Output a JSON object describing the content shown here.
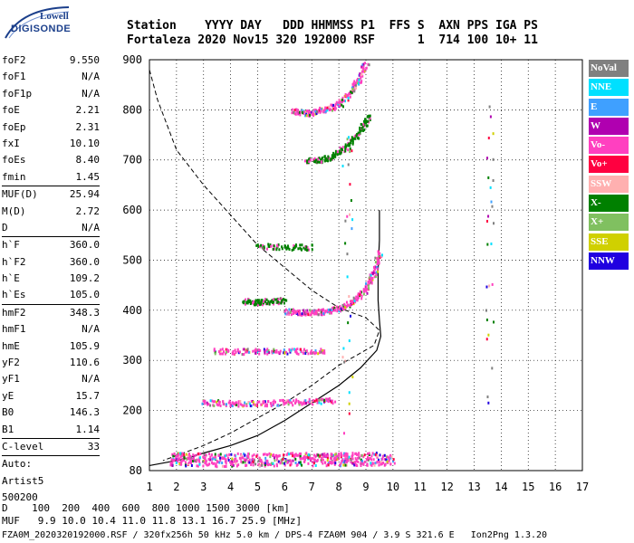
{
  "logo": {
    "line1": "Lowell",
    "line2": "DIGISONDE"
  },
  "header": {
    "labels": "Station    YYYY DAY   DDD HHMMSS P1  FFS S  AXN PPS IGA PS",
    "values": "Fortaleza 2020 Nov15 320 192000 RSF      1  714 100 10+ 11"
  },
  "params": {
    "group1": [
      {
        "k": "foF2",
        "v": "9.550"
      },
      {
        "k": "foF1",
        "v": "N/A"
      },
      {
        "k": "foF1p",
        "v": "N/A"
      },
      {
        "k": "foE",
        "v": "2.21"
      },
      {
        "k": "foEp",
        "v": "2.31"
      },
      {
        "k": "fxI",
        "v": "10.10"
      },
      {
        "k": "foEs",
        "v": "8.40"
      },
      {
        "k": "fmin",
        "v": "1.45"
      }
    ],
    "group2": [
      {
        "k": "MUF(D)",
        "v": "25.94"
      },
      {
        "k": "M(D)",
        "v": "2.72"
      },
      {
        "k": "D",
        "v": "N/A"
      }
    ],
    "group3": [
      {
        "k": "h`F",
        "v": "360.0"
      },
      {
        "k": "h`F2",
        "v": "360.0"
      },
      {
        "k": "h`E",
        "v": "109.2"
      },
      {
        "k": "h`Es",
        "v": "105.0"
      }
    ],
    "group4": [
      {
        "k": "hmF2",
        "v": "348.3"
      },
      {
        "k": "hmF1",
        "v": "N/A"
      },
      {
        "k": "hmE",
        "v": "105.9"
      },
      {
        "k": "yF2",
        "v": "110.6"
      },
      {
        "k": "yF1",
        "v": "N/A"
      },
      {
        "k": "yE",
        "v": "15.7"
      },
      {
        "k": "B0",
        "v": "146.3"
      },
      {
        "k": "B1",
        "v": "1.14"
      }
    ],
    "group5": [
      {
        "k": "C-level",
        "v": "33"
      }
    ],
    "auto": {
      "line1": "Auto:",
      "line2": "Artist5",
      "line3": "500200"
    }
  },
  "legend": [
    {
      "label": "NoVal",
      "color": "#808080"
    },
    {
      "label": "NNE",
      "color": "#00e0ff"
    },
    {
      "label": "E",
      "color": "#3fa0ff"
    },
    {
      "label": "W",
      "color": "#b000b0"
    },
    {
      "label": "Vo-",
      "color": "#ff40c0"
    },
    {
      "label": "Vo+",
      "color": "#ff0040"
    },
    {
      "label": "SSW",
      "color": "#ffb0b0"
    },
    {
      "label": "X-",
      "color": "#008000"
    },
    {
      "label": "X+",
      "color": "#80c060"
    },
    {
      "label": "SSE",
      "color": "#d0d000"
    },
    {
      "label": "NNW",
      "color": "#2000e0"
    }
  ],
  "bottom": {
    "line1": "D    100  200  400  600  800 1000 1500 3000 [km]",
    "line2": "MUF   9.9 10.0 10.4 11.0 11.8 13.1 16.7 25.9 [MHz]"
  },
  "footer": "FZA0M_2020320192000.RSF / 320fx256h 50 kHz 5.0 km / DPS-4 FZA0M 904 / 3.9 S 321.6 E   Ion2Png 1.3.20",
  "chart_data": {
    "type": "scatter",
    "title": "",
    "xlabel": "",
    "ylabel": "",
    "xlim": [
      1,
      17
    ],
    "ylim": [
      80,
      900
    ],
    "xticks": [
      "1",
      "2",
      "3",
      "4",
      "5",
      "6",
      "7",
      "8",
      "9",
      "10",
      "11",
      "12",
      "13",
      "14",
      "15",
      "16",
      "17"
    ],
    "yticks": [
      "80",
      "200",
      "300",
      "400",
      "500",
      "600",
      "700",
      "800",
      "900"
    ],
    "grid": true,
    "legend_position": "right",
    "series": [
      {
        "name": "trace_E_layer",
        "points": [
          [
            1.8,
            105
          ],
          [
            2.5,
            104
          ],
          [
            3.5,
            103
          ],
          [
            4.5,
            104
          ],
          [
            5.5,
            104
          ],
          [
            6.5,
            105
          ],
          [
            7.5,
            104
          ],
          [
            8.2,
            105
          ],
          [
            9.0,
            105
          ],
          [
            10.0,
            106
          ]
        ]
      },
      {
        "name": "trace_F2_o",
        "points": [
          [
            6.0,
            400
          ],
          [
            6.5,
            398
          ],
          [
            7.0,
            398
          ],
          [
            7.5,
            400
          ],
          [
            8.0,
            405
          ],
          [
            8.5,
            420
          ],
          [
            9.0,
            445
          ],
          [
            9.3,
            480
          ],
          [
            9.5,
            520
          ]
        ]
      },
      {
        "name": "trace_F2_o_2hop",
        "points": [
          [
            6.3,
            800
          ],
          [
            6.8,
            795
          ],
          [
            7.3,
            800
          ],
          [
            7.8,
            808
          ],
          [
            8.3,
            830
          ],
          [
            8.7,
            860
          ],
          [
            9.0,
            895
          ]
        ]
      },
      {
        "name": "trace_F2_x_2hop",
        "points": [
          [
            6.8,
            700
          ],
          [
            7.3,
            702
          ],
          [
            7.8,
            710
          ],
          [
            8.3,
            730
          ],
          [
            8.8,
            760
          ],
          [
            9.1,
            790
          ]
        ]
      },
      {
        "name": "trace_F_x",
        "points": [
          [
            4.5,
            420
          ],
          [
            5.0,
            418
          ],
          [
            5.5,
            420
          ],
          [
            6.0,
            422
          ]
        ]
      },
      {
        "name": "trace_F_x2",
        "points": [
          [
            5.0,
            530
          ],
          [
            6.0,
            528
          ],
          [
            7.0,
            528
          ]
        ]
      },
      {
        "name": "trace_3",
        "points": [
          [
            3.0,
            218
          ],
          [
            4.0,
            216
          ],
          [
            5.0,
            216
          ],
          [
            6.0,
            218
          ],
          [
            7.0,
            220
          ],
          [
            7.8,
            222
          ]
        ]
      },
      {
        "name": "trace_4",
        "points": [
          [
            3.3,
            320
          ],
          [
            4.5,
            320
          ],
          [
            5.5,
            320
          ],
          [
            6.5,
            320
          ],
          [
            7.5,
            322
          ]
        ]
      }
    ],
    "profile_solid": [
      [
        1,
        90
      ],
      [
        2.2,
        102
      ],
      [
        3,
        115
      ],
      [
        4,
        130
      ],
      [
        5,
        150
      ],
      [
        6,
        180
      ],
      [
        7,
        215
      ],
      [
        8,
        250
      ],
      [
        8.8,
        285
      ],
      [
        9.4,
        320
      ],
      [
        9.55,
        348
      ],
      [
        9.5,
        380
      ],
      [
        9.45,
        420
      ],
      [
        9.45,
        480
      ],
      [
        9.5,
        540
      ],
      [
        9.5,
        600
      ]
    ],
    "profile_dashed": [
      [
        1,
        880
      ],
      [
        1.3,
        820
      ],
      [
        2,
        720
      ],
      [
        3,
        650
      ],
      [
        4,
        590
      ],
      [
        5,
        530
      ],
      [
        6,
        485
      ],
      [
        7,
        440
      ],
      [
        8,
        405
      ],
      [
        9,
        385
      ],
      [
        9.5,
        360
      ],
      [
        9.3,
        330
      ],
      [
        8,
        290
      ],
      [
        7,
        250
      ],
      [
        6,
        215
      ],
      [
        5,
        185
      ],
      [
        4,
        155
      ],
      [
        3,
        130
      ],
      [
        2,
        110
      ],
      [
        1.5,
        100
      ]
    ]
  }
}
